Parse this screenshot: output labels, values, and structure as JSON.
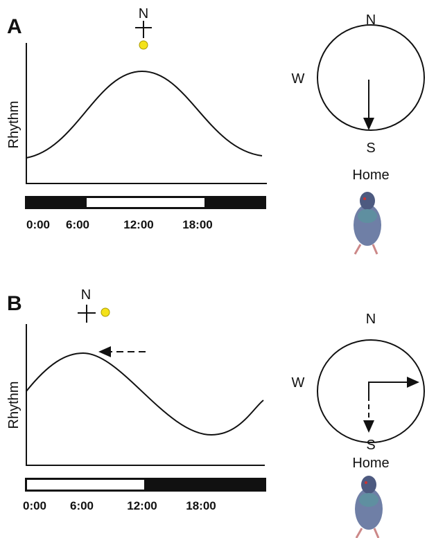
{
  "panels": [
    {
      "label": "A",
      "sun_compass": "N",
      "y_label": "Rhythm",
      "time_ticks": [
        "0:00",
        "6:00",
        "12:00",
        "18:00"
      ],
      "compass": {
        "north": "N",
        "west": "W",
        "south": "S"
      },
      "home": "Home"
    },
    {
      "label": "B",
      "sun_compass": "N",
      "y_label": "Rhythm",
      "time_ticks": [
        "0:00",
        "6:00",
        "12:00",
        "18:00"
      ],
      "compass": {
        "north": "N",
        "west": "W",
        "south": "S"
      },
      "home": "Home"
    }
  ]
}
